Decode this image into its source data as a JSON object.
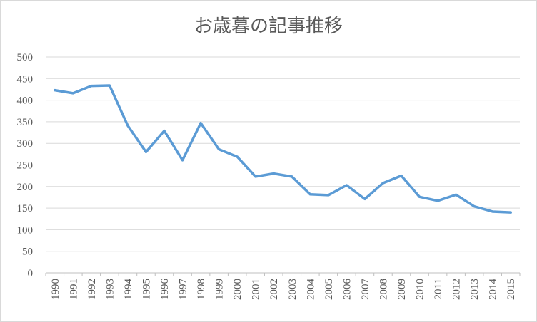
{
  "chart_data": {
    "type": "line",
    "title": "お歳暮の記事推移",
    "xlabel": "",
    "ylabel": "",
    "ylim": [
      0,
      500
    ],
    "yticks": [
      0,
      50,
      100,
      150,
      200,
      250,
      300,
      350,
      400,
      450,
      500
    ],
    "grid": true,
    "legend": "none",
    "categories": [
      "1990",
      "1991",
      "1992",
      "1993",
      "1994",
      "1995",
      "1996",
      "1997",
      "1998",
      "1999",
      "2000",
      "2001",
      "2002",
      "2003",
      "2004",
      "2005",
      "2006",
      "2007",
      "2008",
      "2009",
      "2010",
      "2011",
      "2012",
      "2013",
      "2014",
      "2015"
    ],
    "series": [
      {
        "name": "",
        "color": "#5b9bd5",
        "values": [
          423,
          416,
          433,
          434,
          341,
          280,
          329,
          261,
          347,
          286,
          269,
          223,
          230,
          223,
          182,
          180,
          203,
          171,
          208,
          225,
          176,
          167,
          181,
          154,
          142,
          140
        ]
      }
    ]
  }
}
